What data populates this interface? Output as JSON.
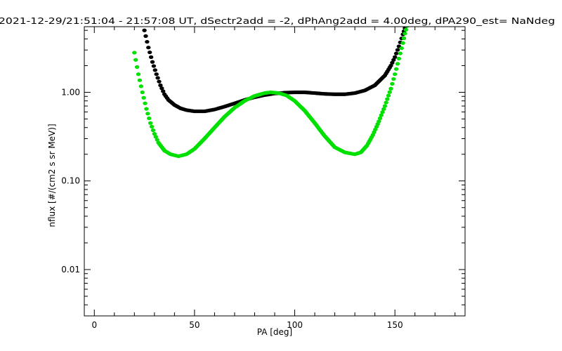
{
  "chart_data": {
    "type": "scatter",
    "title": "2021-12-29/21:51:04 - 21:57:08 UT, dSectr2add = -2, dPhAng2add = 4.00deg, dPA290_est=   NaNdeg",
    "xlabel": "PA [deg]",
    "ylabel": "nflux [#/(cm2 s sr MeV)]",
    "xlim": [
      -5,
      185
    ],
    "ylim": [
      0.003,
      5.5
    ],
    "yscale": "log",
    "grid": false,
    "x_ticks": [
      0,
      50,
      100,
      150
    ],
    "y_ticks": [
      0.01,
      0.1,
      1.0
    ],
    "y_tick_labels": [
      "0.01",
      "0.10",
      "1.00"
    ],
    "series": [
      {
        "color": "#000000",
        "points": [
          [
            25,
            5.0
          ],
          [
            27,
            3.2
          ],
          [
            29,
            2.2
          ],
          [
            31,
            1.6
          ],
          [
            33,
            1.2
          ],
          [
            35,
            0.95
          ],
          [
            37,
            0.82
          ],
          [
            40,
            0.72
          ],
          [
            43,
            0.66
          ],
          [
            46,
            0.63
          ],
          [
            50,
            0.61
          ],
          [
            55,
            0.61
          ],
          [
            60,
            0.64
          ],
          [
            65,
            0.69
          ],
          [
            70,
            0.75
          ],
          [
            75,
            0.82
          ],
          [
            80,
            0.88
          ],
          [
            85,
            0.93
          ],
          [
            90,
            0.97
          ],
          [
            95,
            0.99
          ],
          [
            100,
            1.0
          ],
          [
            105,
            1.0
          ],
          [
            110,
            0.98
          ],
          [
            115,
            0.96
          ],
          [
            120,
            0.95
          ],
          [
            125,
            0.95
          ],
          [
            130,
            0.98
          ],
          [
            135,
            1.05
          ],
          [
            140,
            1.2
          ],
          [
            145,
            1.55
          ],
          [
            148,
            2.0
          ],
          [
            150,
            2.5
          ],
          [
            152,
            3.3
          ],
          [
            154,
            4.5
          ],
          [
            155,
            5.3
          ]
        ]
      },
      {
        "color": "#00e000",
        "points": [
          [
            20,
            2.8
          ],
          [
            22,
            1.6
          ],
          [
            24,
            1.0
          ],
          [
            26,
            0.65
          ],
          [
            28,
            0.45
          ],
          [
            30,
            0.34
          ],
          [
            32,
            0.27
          ],
          [
            35,
            0.22
          ],
          [
            38,
            0.2
          ],
          [
            42,
            0.19
          ],
          [
            46,
            0.2
          ],
          [
            50,
            0.23
          ],
          [
            55,
            0.3
          ],
          [
            60,
            0.4
          ],
          [
            65,
            0.53
          ],
          [
            70,
            0.67
          ],
          [
            75,
            0.8
          ],
          [
            80,
            0.91
          ],
          [
            85,
            0.98
          ],
          [
            88,
            1.0
          ],
          [
            92,
            0.98
          ],
          [
            96,
            0.92
          ],
          [
            100,
            0.8
          ],
          [
            105,
            0.62
          ],
          [
            110,
            0.45
          ],
          [
            115,
            0.32
          ],
          [
            120,
            0.24
          ],
          [
            125,
            0.21
          ],
          [
            130,
            0.2
          ],
          [
            133,
            0.21
          ],
          [
            136,
            0.25
          ],
          [
            139,
            0.33
          ],
          [
            142,
            0.47
          ],
          [
            145,
            0.7
          ],
          [
            148,
            1.1
          ],
          [
            150,
            1.6
          ],
          [
            152,
            2.4
          ],
          [
            154,
            3.6
          ],
          [
            155,
            4.6
          ],
          [
            156,
            5.6
          ]
        ]
      }
    ]
  }
}
